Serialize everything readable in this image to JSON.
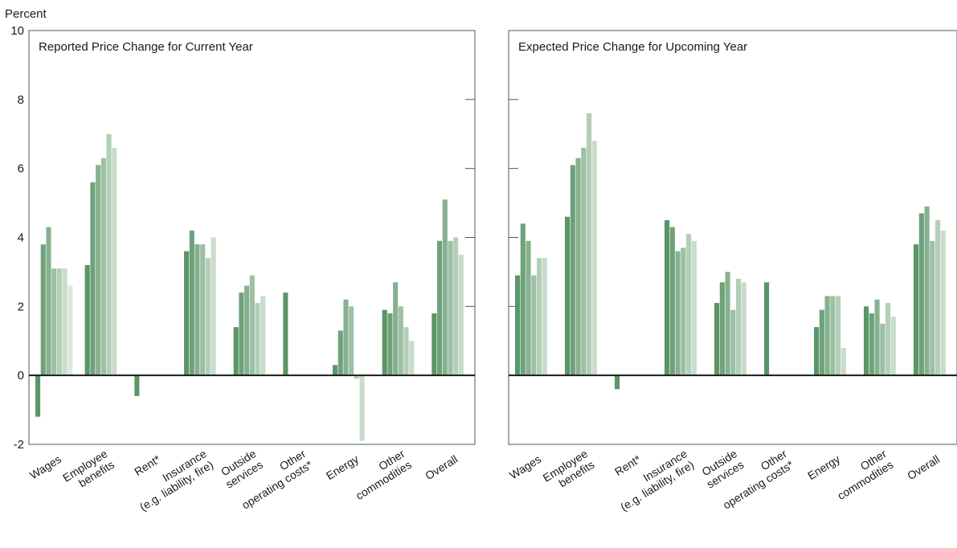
{
  "y_unit_label": "Percent",
  "chart_data": [
    {
      "type": "bar",
      "title": "Reported Price Change for Current Year",
      "ylabel": "Percent",
      "ylim": [
        -2,
        10
      ],
      "yticks": [
        -2,
        0,
        2,
        4,
        6,
        8,
        10
      ],
      "categories": [
        [
          "Wages"
        ],
        [
          "Employee",
          "benefits"
        ],
        [
          "Rent*"
        ],
        [
          "Insurance",
          "(e.g. liability, fire)"
        ],
        [
          "Outside",
          "services"
        ],
        [
          "Other",
          "operating costs*"
        ],
        [
          "Energy"
        ],
        [
          "Other",
          "commodities"
        ],
        [
          "Overall"
        ]
      ],
      "bars_per_category": 8,
      "values": [
        [
          -1.2,
          3.8,
          4.3,
          3.1,
          3.1,
          3.1,
          2.6
        ],
        [
          3.2,
          5.6,
          6.1,
          6.3,
          7.0,
          6.6
        ],
        [
          -0.6
        ],
        [
          3.6,
          4.2,
          3.8,
          3.8,
          3.4,
          4.0
        ],
        [
          1.4,
          2.4,
          2.6,
          2.9,
          2.1,
          2.3
        ],
        [
          2.4
        ],
        [
          0.3,
          1.3,
          2.2,
          2.0,
          -0.1,
          -1.9
        ],
        [
          1.9,
          1.8,
          2.7,
          2.0,
          1.4,
          1.0
        ],
        [
          1.8,
          3.9,
          5.1,
          3.9,
          4.0,
          3.5
        ]
      ],
      "grid": false,
      "legend": "none"
    },
    {
      "type": "bar",
      "title": "Expected Price Change for Upcoming Year",
      "ylabel": "Percent",
      "ylim": [
        -2,
        10
      ],
      "yticks": [
        -2,
        0,
        2,
        4,
        6,
        8,
        10
      ],
      "categories": [
        [
          "Wages"
        ],
        [
          "Employee",
          "benefits"
        ],
        [
          "Rent*"
        ],
        [
          "Insurance",
          "(e.g. liability, fire)"
        ],
        [
          "Outside",
          "services"
        ],
        [
          "Other",
          "operating costs*"
        ],
        [
          "Energy"
        ],
        [
          "Other",
          "commodities"
        ],
        [
          "Overall"
        ]
      ],
      "bars_per_category": 8,
      "values": [
        [
          2.9,
          4.4,
          3.9,
          2.9,
          3.4,
          3.4
        ],
        [
          4.6,
          6.1,
          6.3,
          6.6,
          7.6,
          6.8
        ],
        [
          -0.4
        ],
        [
          4.5,
          4.3,
          3.6,
          3.7,
          4.1,
          3.9
        ],
        [
          2.1,
          2.7,
          3.0,
          1.9,
          2.8,
          2.7
        ],
        [
          2.7
        ],
        [
          1.4,
          1.9,
          2.3,
          2.3,
          2.3,
          0.8
        ],
        [
          2.0,
          1.8,
          2.2,
          1.5,
          2.1,
          1.7
        ],
        [
          3.8,
          4.7,
          4.9,
          3.9,
          4.5,
          4.2
        ]
      ],
      "grid": false,
      "legend": "none"
    }
  ],
  "colors": {
    "bar_shades": [
      "#5a9668",
      "#6fa27b",
      "#86b18f",
      "#9dc0a4",
      "#b3cfb8",
      "#c9dccb",
      "#dbe8dd",
      "#e8f0e9"
    ],
    "axis": "#1a1a1a",
    "frame": "#555555"
  }
}
